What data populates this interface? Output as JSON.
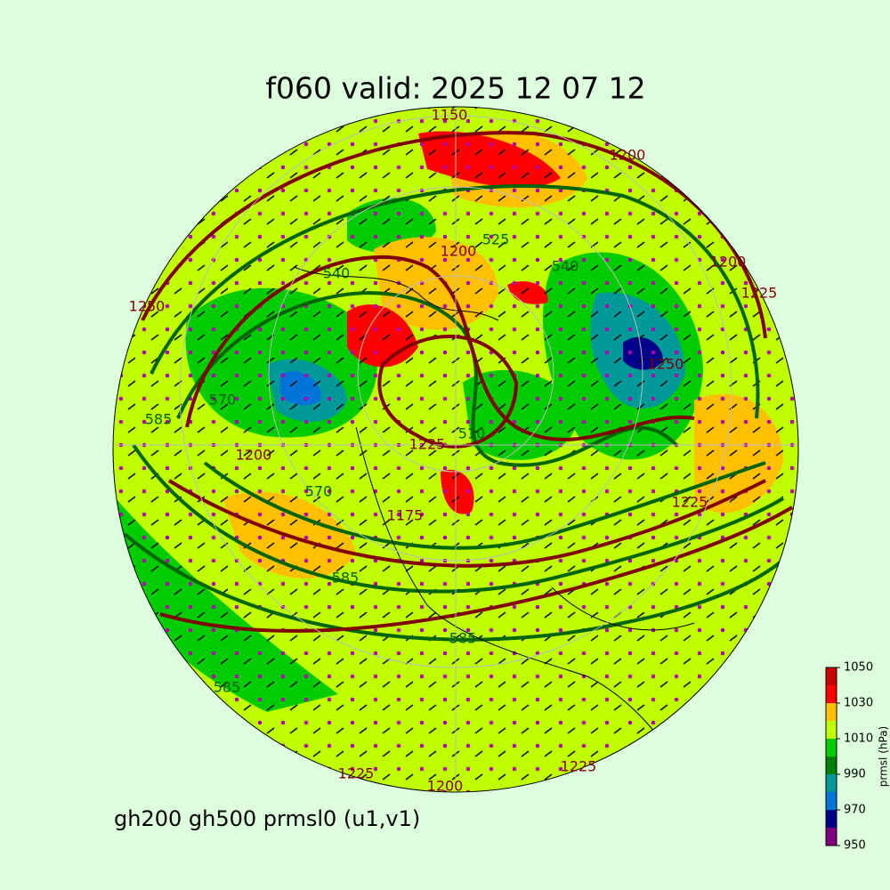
{
  "title": "f060 valid:   2025 12 07 12",
  "subtitle": "gh200 gh500 prmsl0 (u1,v1)",
  "colorbar": {
    "label": "prmsl (hPa)",
    "levels": [
      950,
      960,
      970,
      980,
      990,
      1000,
      1010,
      1020,
      1030,
      1040,
      1050
    ],
    "colors": [
      "#800080",
      "#00008b",
      "#0074d9",
      "#009999",
      "#008000",
      "#00cc00",
      "#bfff00",
      "#ffc000",
      "#ff0000",
      "#cc0000"
    ],
    "ticks": [
      950,
      970,
      990,
      1010,
      1030,
      1050
    ]
  },
  "contour_labels": [
    {
      "value": 1150,
      "color": "#800000"
    },
    {
      "value": 1200,
      "color": "#800000"
    },
    {
      "value": 1250,
      "color": "#800000"
    },
    {
      "value": 540,
      "color": "#006400"
    },
    {
      "value": 1200,
      "color": "#800000"
    },
    {
      "value": 525,
      "color": "#006400"
    },
    {
      "value": 540,
      "color": "#006400"
    },
    {
      "value": 1225,
      "color": "#800000"
    },
    {
      "value": 1200,
      "color": "#800000"
    },
    {
      "value": 570,
      "color": "#006400"
    },
    {
      "value": 585,
      "color": "#006400"
    },
    {
      "value": 1200,
      "color": "#800000"
    },
    {
      "value": 570,
      "color": "#006400"
    },
    {
      "value": 1225,
      "color": "#800000"
    },
    {
      "value": 510,
      "color": "#006400"
    },
    {
      "value": 1225,
      "color": "#800000"
    },
    {
      "value": 1175,
      "color": "#800000"
    },
    {
      "value": 585,
      "color": "#006400"
    },
    {
      "value": 585,
      "color": "#006400"
    },
    {
      "value": 585,
      "color": "#006400"
    },
    {
      "value": 1225,
      "color": "#800000"
    },
    {
      "value": 1200,
      "color": "#800000"
    },
    {
      "value": 1225,
      "color": "#800000"
    },
    {
      "value": 1250,
      "color": "#800000"
    }
  ]
}
